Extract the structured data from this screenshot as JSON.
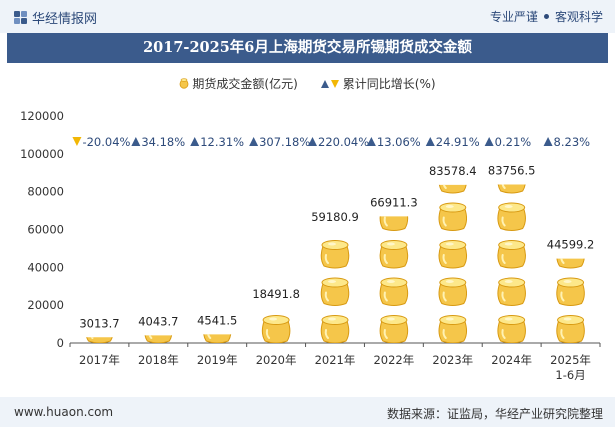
{
  "header": {
    "brand": "华经情报网",
    "tag_left": "专业严谨",
    "tag_right": "客观科学"
  },
  "title": "2017-2025年6月上海期货交易所锡期货成交金额",
  "legend": {
    "series1": "期货成交金额(亿元)",
    "series2": "累计同比增长(%)"
  },
  "colors": {
    "coin": "#f5c64a",
    "coin_dark": "#d89a12",
    "coin_light": "#fde88a",
    "up_arrow": "#3b5b8c",
    "down_arrow": "#f2b705",
    "title_bg": "#3b5b8c"
  },
  "chart_data": {
    "type": "bar",
    "categories": [
      "2017年",
      "2018年",
      "2019年",
      "2020年",
      "2021年",
      "2022年",
      "2023年",
      "2024年",
      "2025年\n1-6月"
    ],
    "series": [
      {
        "name": "期货成交金额(亿元)",
        "values": [
          3013.7,
          4043.7,
          4541.5,
          18491.8,
          59180.9,
          66911.3,
          83578.4,
          83756.5,
          44599.2
        ]
      },
      {
        "name": "累计同比增长(%)",
        "values": [
          -20.04,
          34.18,
          12.31,
          307.18,
          220.04,
          13.06,
          24.91,
          0.21,
          8.23
        ]
      }
    ],
    "value_labels": [
      "3013.7",
      "4043.7",
      "4541.5",
      "18491.8",
      "59180.9",
      "66911.3",
      "83578.4",
      "83756.5",
      "44599.2"
    ],
    "growth_labels": [
      "-20.04%",
      "34.18%",
      "12.31%",
      "307.18%",
      "220.04%",
      "13.06%",
      "24.91%",
      "0.21%",
      "8.23%"
    ],
    "yticks": [
      "0",
      "20000",
      "40000",
      "60000",
      "80000",
      "100000",
      "120000"
    ],
    "ylim": [
      0,
      120000
    ],
    "legend_position": "top-center",
    "grid": false
  },
  "footer": {
    "website": "www.huaon.com",
    "source": "数据来源：证监局，华经产业研究院整理"
  }
}
